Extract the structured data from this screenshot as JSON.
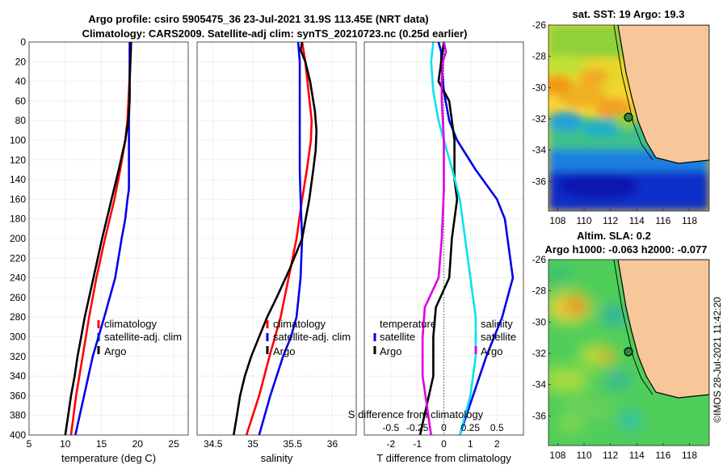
{
  "figure": {
    "title_line1": "Argo profile: csiro 5905475_36 23-Jul-2021 31.9S 113.45E (NRT data)",
    "title_line2": "Climatology: CARS2009. Satellite-adj clim: synTS_20210723.nc (0.25d earlier)",
    "watermark": "©IMOS 28-Jul-2021 11:42:20",
    "colors": {
      "climatology": "#ff0000",
      "satellite": "#0000ee",
      "argo": "#000000",
      "cyan": "#00e5ee",
      "magenta": "#e000e0",
      "land": "#f7c79a"
    }
  },
  "chart_data": [
    {
      "type": "line",
      "id": "temperature",
      "xlabel": "temperature (deg C)",
      "ylabel": "",
      "xlim": [
        5,
        27
      ],
      "ylim": [
        0,
        400
      ],
      "x_ticks": [
        5,
        10,
        15,
        20,
        25
      ],
      "y_ticks": [
        0,
        20,
        40,
        60,
        80,
        100,
        120,
        140,
        160,
        180,
        200,
        220,
        240,
        260,
        280,
        300,
        320,
        340,
        360,
        380,
        400
      ],
      "legend": [
        "climatology",
        "satellite-adj. clim",
        "Argo"
      ],
      "series": [
        {
          "name": "climatology",
          "color": "#ff0000",
          "depth": [
            0,
            20,
            50,
            80,
            100,
            130,
            160,
            200,
            240,
            280,
            320,
            360,
            400
          ],
          "values": [
            19.1,
            19.0,
            18.8,
            18.6,
            18.3,
            17.6,
            16.8,
            15.5,
            14.3,
            13.3,
            12.4,
            11.5,
            10.8
          ]
        },
        {
          "name": "satellite-adj. clim",
          "color": "#0000ee",
          "depth": [
            0,
            20,
            50,
            80,
            100,
            130,
            150,
            160,
            180,
            200,
            240,
            280,
            320,
            360,
            400
          ],
          "values": [
            18.9,
            18.9,
            18.9,
            18.8,
            18.8,
            18.8,
            18.8,
            18.6,
            18.3,
            17.8,
            16.9,
            15.4,
            13.8,
            12.6,
            11.4
          ]
        },
        {
          "name": "Argo",
          "color": "#000000",
          "depth": [
            0,
            20,
            40,
            60,
            80,
            100,
            130,
            160,
            200,
            240,
            260,
            280,
            300,
            320,
            340,
            360,
            380,
            400
          ],
          "values": [
            19.1,
            19.0,
            18.9,
            18.9,
            18.7,
            18.3,
            17.4,
            16.4,
            15.1,
            13.9,
            13.3,
            12.7,
            12.2,
            11.7,
            11.3,
            10.8,
            10.4,
            10.0
          ]
        }
      ]
    },
    {
      "type": "line",
      "id": "salinity",
      "xlabel": "salinity",
      "xlim": [
        34.3,
        36.3
      ],
      "ylim": [
        0,
        400
      ],
      "x_ticks": [
        34.5,
        35,
        35.5,
        36
      ],
      "legend": [
        "climatology",
        "satellite-adj. clim",
        "Argo"
      ],
      "series": [
        {
          "name": "climatology",
          "color": "#ff0000",
          "depth": [
            0,
            20,
            50,
            80,
            100,
            130,
            160,
            200,
            240,
            280,
            320,
            360,
            400
          ],
          "values": [
            35.62,
            35.66,
            35.7,
            35.74,
            35.73,
            35.68,
            35.62,
            35.55,
            35.45,
            35.35,
            35.21,
            35.08,
            34.92
          ]
        },
        {
          "name": "satellite-adj. clim",
          "color": "#0000ee",
          "depth": [
            0,
            20,
            50,
            80,
            100,
            130,
            160,
            200,
            240,
            280,
            300,
            320,
            360,
            400
          ],
          "values": [
            35.57,
            35.59,
            35.59,
            35.59,
            35.59,
            35.59,
            35.6,
            35.62,
            35.6,
            35.55,
            35.48,
            35.38,
            35.22,
            35.08
          ]
        },
        {
          "name": "Argo",
          "color": "#000000",
          "depth": [
            0,
            8,
            20,
            40,
            70,
            90,
            110,
            130,
            160,
            200,
            230,
            260,
            280,
            300,
            320,
            340,
            360,
            380,
            400
          ],
          "values": [
            35.62,
            35.6,
            35.66,
            35.72,
            35.78,
            35.8,
            35.79,
            35.76,
            35.71,
            35.62,
            35.47,
            35.3,
            35.18,
            35.08,
            34.98,
            34.9,
            34.84,
            34.8,
            34.76
          ]
        }
      ]
    },
    {
      "type": "line",
      "id": "differences",
      "xlabel": "T difference from climatology",
      "top_xlabel": "S difference from climatology",
      "xlim": [
        -3,
        3
      ],
      "top_xlim": [
        -0.75,
        0.75
      ],
      "ylim": [
        0,
        400
      ],
      "x_ticks": [
        -2,
        -1,
        0,
        1,
        2
      ],
      "top_ticks": [
        "-0.5",
        "-0.25",
        "0",
        "0.25",
        "0.5"
      ],
      "legend_left": {
        "heading": "temperature",
        "items": [
          "satellite",
          "Argo"
        ]
      },
      "legend_right": {
        "heading": "salinity",
        "items": [
          "satellite",
          "Argo"
        ]
      },
      "series": [
        {
          "name": "T satellite",
          "color": "#0000ee",
          "depth": [
            0,
            10,
            20,
            50,
            80,
            100,
            130,
            160,
            180,
            200,
            240,
            280,
            320,
            360,
            400
          ],
          "values": [
            -0.2,
            -0.1,
            -0.1,
            0.0,
            0.2,
            0.5,
            1.2,
            2.0,
            2.3,
            2.4,
            2.6,
            2.2,
            1.6,
            1.1,
            0.6
          ]
        },
        {
          "name": "T Argo",
          "color": "#000000",
          "depth": [
            0,
            20,
            40,
            60,
            80,
            100,
            140,
            160,
            200,
            240,
            270,
            300,
            340,
            400
          ],
          "values": [
            0.0,
            -0.1,
            -0.2,
            0.2,
            0.3,
            0.4,
            0.4,
            0.5,
            0.3,
            0.2,
            -0.3,
            -0.4,
            -0.4,
            -0.9
          ]
        },
        {
          "name": "S satellite",
          "color": "#00e5ee",
          "depth": [
            0,
            20,
            50,
            80,
            100,
            130,
            160,
            200,
            240,
            280,
            320,
            360,
            400
          ],
          "values": [
            -0.1,
            -0.12,
            -0.1,
            -0.05,
            0.0,
            0.08,
            0.15,
            0.2,
            0.25,
            0.3,
            0.3,
            0.25,
            0.15
          ]
        },
        {
          "name": "S Argo",
          "color": "#e000e0",
          "depth": [
            0,
            10,
            20,
            40,
            60,
            100,
            150,
            200,
            240,
            270,
            300,
            340,
            400
          ],
          "values": [
            0.0,
            0.02,
            -0.01,
            -0.02,
            -0.02,
            0.0,
            0.0,
            -0.02,
            -0.05,
            -0.18,
            -0.2,
            -0.2,
            -0.12
          ]
        }
      ]
    },
    {
      "type": "heatmap",
      "id": "sst_map",
      "title": "sat. SST: 19 Argo: 19.3",
      "x_ticks": [
        "108",
        "110",
        "112",
        "114",
        "116",
        "118"
      ],
      "y_ticks": [
        "-26",
        "-28",
        "-30",
        "-32",
        "-34",
        "-36"
      ],
      "xlim": [
        107.3,
        119.5
      ],
      "ylim": [
        -37.9,
        -26
      ],
      "float_position": {
        "lon": 113.45,
        "lat": -31.9
      }
    },
    {
      "type": "heatmap",
      "id": "sla_map",
      "title_line1": "Altim. SLA: 0.2",
      "title_line2": "Argo h1000: -0.063 h2000: -0.077",
      "x_ticks": [
        "108",
        "110",
        "112",
        "114",
        "116",
        "118"
      ],
      "y_ticks": [
        "-26",
        "-28",
        "-30",
        "-32",
        "-34",
        "-36"
      ],
      "xlim": [
        107.3,
        119.5
      ],
      "ylim": [
        -37.9,
        -26
      ],
      "float_position": {
        "lon": 113.45,
        "lat": -31.9
      }
    }
  ]
}
